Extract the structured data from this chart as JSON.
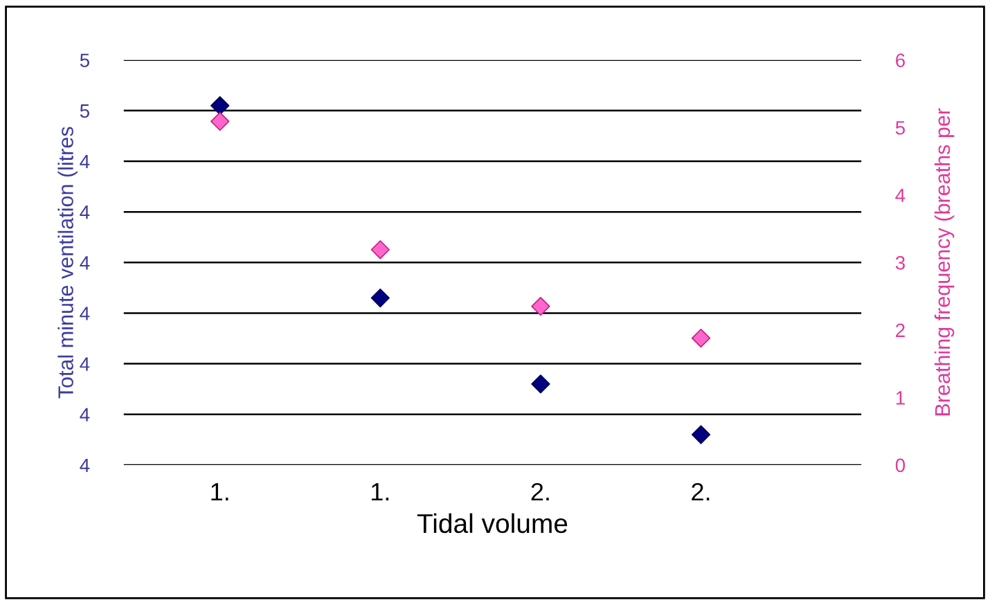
{
  "chart_data": {
    "type": "scatter",
    "xlabel": "Tidal volume",
    "ylabel": "Total minute ventilation (litres",
    "y2label": "Breathing frequency (breaths per",
    "categories": [
      "1.",
      "1.",
      "2.",
      "2."
    ],
    "series": [
      {
        "color": "#000080",
        "values": [
          4.51,
          4.13,
          3.96,
          3.86
        ]
      },
      {
        "color": "#ff66cc",
        "values": [
          5.09,
          3.19,
          2.35,
          1.88
        ],
        "axis": "y2"
      }
    ],
    "ylim": [
      3.8,
      4.6
    ],
    "yticks": [
      {
        "value": 3.8,
        "label": "4"
      },
      {
        "value": 3.9,
        "label": "4"
      },
      {
        "value": 4.0,
        "label": "4"
      },
      {
        "value": 4.1,
        "label": "4"
      },
      {
        "value": 4.2,
        "label": "4"
      },
      {
        "value": 4.3,
        "label": "4"
      },
      {
        "value": 4.4,
        "label": "4"
      },
      {
        "value": 4.5,
        "label": "5"
      },
      {
        "value": 4.6,
        "label": "5"
      }
    ],
    "y2lim": [
      0,
      6
    ],
    "y2ticks": [
      0,
      1,
      2,
      3,
      4,
      5,
      6
    ],
    "grid": "y",
    "marker": "diamond"
  }
}
